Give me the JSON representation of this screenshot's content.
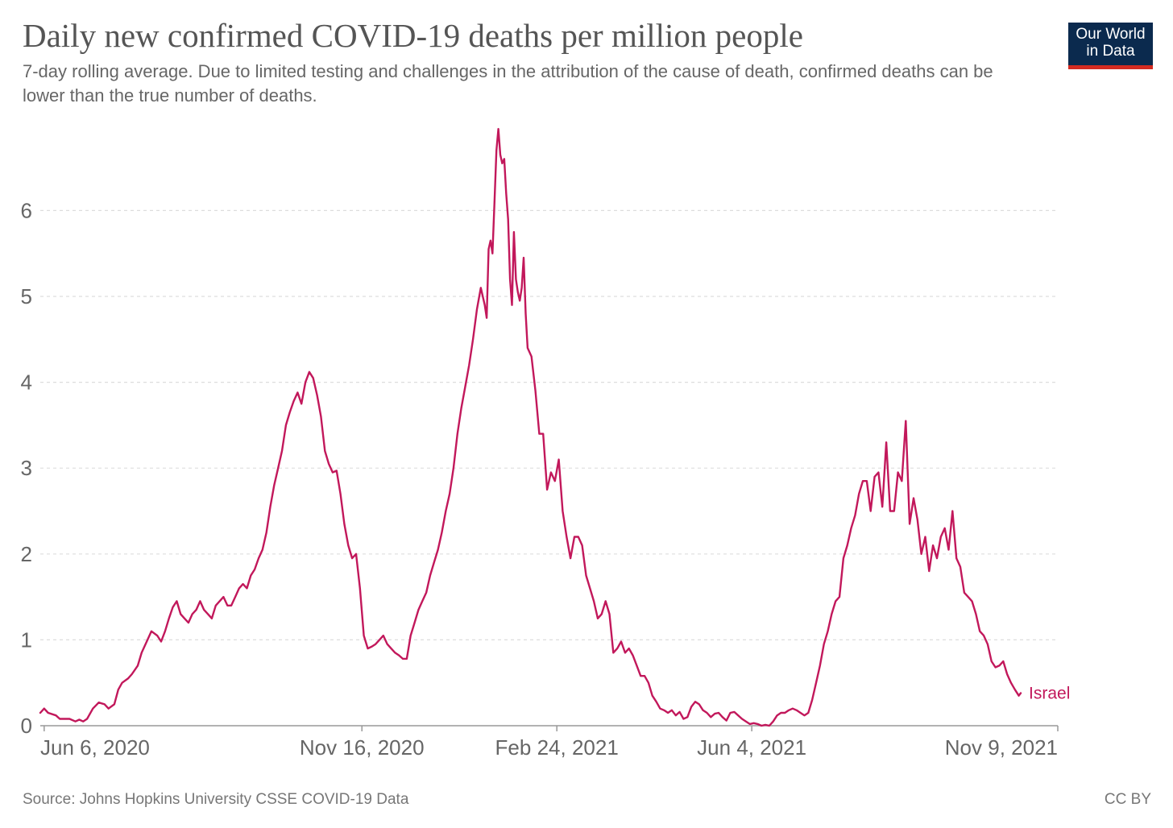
{
  "header": {
    "title": "Daily new confirmed COVID-19 deaths per million people",
    "subtitle": "7-day rolling average. Due to limited testing and challenges in the attribution of the cause of death, confirmed deaths can be lower than the true number of deaths.",
    "logo_line1": "Our World",
    "logo_line2": "in Data"
  },
  "footer": {
    "source": "Source: Johns Hopkins University CSSE COVID-19 Data",
    "license": "CC BY"
  },
  "colors": {
    "series": "#c2185b",
    "grid": "#dddddd",
    "axis": "#999999",
    "logo_bg": "#0b2a4e",
    "logo_accent": "#d42b21"
  },
  "chart_data": {
    "type": "line",
    "title": "Daily new confirmed COVID-19 deaths per million people",
    "subtitle": "7-day rolling average",
    "xlabel": "",
    "ylabel": "",
    "ylim": [
      0,
      7
    ],
    "yticks": [
      0,
      1,
      2,
      3,
      4,
      5,
      6
    ],
    "grid": true,
    "x_range_days": [
      0,
      522
    ],
    "x_start_date": "2020-06-04",
    "xtick_labels": [
      {
        "day": 2,
        "label": "Jun 6, 2020"
      },
      {
        "day": 165,
        "label": "Nov 16, 2020"
      },
      {
        "day": 265,
        "label": "Feb 24, 2021"
      },
      {
        "day": 365,
        "label": "Jun 4, 2021"
      },
      {
        "day": 523,
        "label": "Nov 9, 2021"
      }
    ],
    "series": [
      {
        "name": "Israel",
        "points": [
          [
            0,
            0.15
          ],
          [
            2,
            0.2
          ],
          [
            4,
            0.15
          ],
          [
            8,
            0.12
          ],
          [
            10,
            0.08
          ],
          [
            15,
            0.08
          ],
          [
            18,
            0.05
          ],
          [
            20,
            0.07
          ],
          [
            22,
            0.05
          ],
          [
            24,
            0.08
          ],
          [
            27,
            0.2
          ],
          [
            30,
            0.27
          ],
          [
            33,
            0.25
          ],
          [
            35,
            0.2
          ],
          [
            38,
            0.25
          ],
          [
            40,
            0.42
          ],
          [
            42,
            0.5
          ],
          [
            45,
            0.55
          ],
          [
            47,
            0.6
          ],
          [
            50,
            0.7
          ],
          [
            52,
            0.85
          ],
          [
            55,
            1.0
          ],
          [
            57,
            1.1
          ],
          [
            60,
            1.05
          ],
          [
            62,
            0.98
          ],
          [
            64,
            1.1
          ],
          [
            66,
            1.25
          ],
          [
            68,
            1.38
          ],
          [
            70,
            1.45
          ],
          [
            72,
            1.3
          ],
          [
            74,
            1.25
          ],
          [
            76,
            1.2
          ],
          [
            78,
            1.3
          ],
          [
            80,
            1.35
          ],
          [
            82,
            1.45
          ],
          [
            84,
            1.35
          ],
          [
            86,
            1.3
          ],
          [
            88,
            1.25
          ],
          [
            90,
            1.4
          ],
          [
            92,
            1.45
          ],
          [
            94,
            1.5
          ],
          [
            96,
            1.4
          ],
          [
            98,
            1.4
          ],
          [
            100,
            1.5
          ],
          [
            102,
            1.6
          ],
          [
            104,
            1.65
          ],
          [
            106,
            1.6
          ],
          [
            108,
            1.75
          ],
          [
            110,
            1.82
          ],
          [
            112,
            1.95
          ],
          [
            114,
            2.05
          ],
          [
            116,
            2.25
          ],
          [
            118,
            2.55
          ],
          [
            120,
            2.8
          ],
          [
            122,
            3.0
          ],
          [
            124,
            3.2
          ],
          [
            126,
            3.5
          ],
          [
            128,
            3.65
          ],
          [
            130,
            3.78
          ],
          [
            132,
            3.88
          ],
          [
            134,
            3.75
          ],
          [
            136,
            4.0
          ],
          [
            138,
            4.12
          ],
          [
            140,
            4.05
          ],
          [
            142,
            3.85
          ],
          [
            144,
            3.6
          ],
          [
            146,
            3.2
          ],
          [
            148,
            3.05
          ],
          [
            150,
            2.95
          ],
          [
            152,
            2.97
          ],
          [
            154,
            2.7
          ],
          [
            156,
            2.35
          ],
          [
            158,
            2.1
          ],
          [
            160,
            1.95
          ],
          [
            162,
            2.0
          ],
          [
            164,
            1.6
          ],
          [
            166,
            1.05
          ],
          [
            168,
            0.9
          ],
          [
            170,
            0.92
          ],
          [
            172,
            0.95
          ],
          [
            174,
            1.0
          ],
          [
            176,
            1.05
          ],
          [
            178,
            0.95
          ],
          [
            180,
            0.9
          ],
          [
            182,
            0.85
          ],
          [
            184,
            0.82
          ],
          [
            186,
            0.78
          ],
          [
            188,
            0.78
          ],
          [
            190,
            1.05
          ],
          [
            192,
            1.2
          ],
          [
            194,
            1.35
          ],
          [
            196,
            1.45
          ],
          [
            198,
            1.55
          ],
          [
            200,
            1.75
          ],
          [
            202,
            1.9
          ],
          [
            204,
            2.05
          ],
          [
            206,
            2.25
          ],
          [
            208,
            2.5
          ],
          [
            210,
            2.7
          ],
          [
            212,
            3.0
          ],
          [
            214,
            3.4
          ],
          [
            216,
            3.7
          ],
          [
            218,
            3.95
          ],
          [
            220,
            4.2
          ],
          [
            222,
            4.5
          ],
          [
            224,
            4.85
          ],
          [
            226,
            5.1
          ],
          [
            228,
            4.9
          ],
          [
            229,
            4.75
          ],
          [
            230,
            5.55
          ],
          [
            231,
            5.65
          ],
          [
            232,
            5.5
          ],
          [
            233,
            6.1
          ],
          [
            234,
            6.7
          ],
          [
            235,
            6.95
          ],
          [
            236,
            6.65
          ],
          [
            237,
            6.55
          ],
          [
            238,
            6.6
          ],
          [
            239,
            6.2
          ],
          [
            240,
            5.9
          ],
          [
            241,
            5.2
          ],
          [
            242,
            4.9
          ],
          [
            243,
            5.75
          ],
          [
            244,
            5.2
          ],
          [
            245,
            5.05
          ],
          [
            246,
            4.95
          ],
          [
            247,
            5.1
          ],
          [
            248,
            5.45
          ],
          [
            249,
            4.8
          ],
          [
            250,
            4.4
          ],
          [
            252,
            4.3
          ],
          [
            254,
            3.9
          ],
          [
            256,
            3.4
          ],
          [
            258,
            3.4
          ],
          [
            260,
            2.75
          ],
          [
            262,
            2.95
          ],
          [
            264,
            2.85
          ],
          [
            266,
            3.1
          ],
          [
            268,
            2.5
          ],
          [
            270,
            2.2
          ],
          [
            272,
            1.95
          ],
          [
            274,
            2.2
          ],
          [
            276,
            2.2
          ],
          [
            278,
            2.1
          ],
          [
            280,
            1.75
          ],
          [
            282,
            1.6
          ],
          [
            284,
            1.45
          ],
          [
            286,
            1.25
          ],
          [
            288,
            1.3
          ],
          [
            290,
            1.45
          ],
          [
            292,
            1.3
          ],
          [
            294,
            0.85
          ],
          [
            296,
            0.9
          ],
          [
            298,
            0.98
          ],
          [
            300,
            0.85
          ],
          [
            302,
            0.9
          ],
          [
            304,
            0.82
          ],
          [
            306,
            0.7
          ],
          [
            308,
            0.58
          ],
          [
            310,
            0.58
          ],
          [
            312,
            0.5
          ],
          [
            314,
            0.35
          ],
          [
            316,
            0.28
          ],
          [
            318,
            0.2
          ],
          [
            320,
            0.18
          ],
          [
            322,
            0.15
          ],
          [
            324,
            0.18
          ],
          [
            326,
            0.12
          ],
          [
            328,
            0.16
          ],
          [
            330,
            0.08
          ],
          [
            332,
            0.1
          ],
          [
            334,
            0.22
          ],
          [
            336,
            0.28
          ],
          [
            338,
            0.25
          ],
          [
            340,
            0.18
          ],
          [
            342,
            0.15
          ],
          [
            344,
            0.1
          ],
          [
            346,
            0.14
          ],
          [
            348,
            0.15
          ],
          [
            350,
            0.1
          ],
          [
            352,
            0.06
          ],
          [
            354,
            0.15
          ],
          [
            356,
            0.16
          ],
          [
            358,
            0.12
          ],
          [
            360,
            0.08
          ],
          [
            362,
            0.05
          ],
          [
            364,
            0.02
          ],
          [
            366,
            0.03
          ],
          [
            368,
            0.02
          ],
          [
            370,
            0.0
          ],
          [
            372,
            0.01
          ],
          [
            374,
            0.0
          ],
          [
            376,
            0.05
          ],
          [
            378,
            0.12
          ],
          [
            380,
            0.15
          ],
          [
            382,
            0.15
          ],
          [
            384,
            0.18
          ],
          [
            386,
            0.2
          ],
          [
            388,
            0.18
          ],
          [
            390,
            0.15
          ],
          [
            392,
            0.12
          ],
          [
            394,
            0.15
          ],
          [
            396,
            0.3
          ],
          [
            398,
            0.5
          ],
          [
            400,
            0.7
          ],
          [
            402,
            0.95
          ],
          [
            404,
            1.1
          ],
          [
            406,
            1.3
          ],
          [
            408,
            1.45
          ],
          [
            410,
            1.5
          ],
          [
            412,
            1.95
          ],
          [
            414,
            2.1
          ],
          [
            416,
            2.3
          ],
          [
            418,
            2.45
          ],
          [
            420,
            2.7
          ],
          [
            422,
            2.85
          ],
          [
            424,
            2.85
          ],
          [
            426,
            2.5
          ],
          [
            428,
            2.9
          ],
          [
            430,
            2.95
          ],
          [
            432,
            2.55
          ],
          [
            434,
            3.3
          ],
          [
            436,
            2.5
          ],
          [
            438,
            2.5
          ],
          [
            440,
            2.95
          ],
          [
            442,
            2.85
          ],
          [
            444,
            3.55
          ],
          [
            446,
            2.35
          ],
          [
            448,
            2.65
          ],
          [
            450,
            2.4
          ],
          [
            452,
            2.0
          ],
          [
            454,
            2.2
          ],
          [
            456,
            1.8
          ],
          [
            458,
            2.1
          ],
          [
            460,
            1.95
          ],
          [
            462,
            2.2
          ],
          [
            464,
            2.3
          ],
          [
            466,
            2.05
          ],
          [
            468,
            2.5
          ],
          [
            470,
            1.95
          ],
          [
            472,
            1.85
          ],
          [
            474,
            1.55
          ],
          [
            476,
            1.5
          ],
          [
            478,
            1.45
          ],
          [
            480,
            1.3
          ],
          [
            482,
            1.1
          ],
          [
            484,
            1.05
          ],
          [
            486,
            0.95
          ],
          [
            488,
            0.75
          ],
          [
            490,
            0.68
          ],
          [
            492,
            0.7
          ],
          [
            494,
            0.75
          ],
          [
            496,
            0.6
          ],
          [
            498,
            0.5
          ],
          [
            500,
            0.42
          ],
          [
            502,
            0.35
          ],
          [
            503,
            0.38
          ]
        ]
      }
    ]
  }
}
